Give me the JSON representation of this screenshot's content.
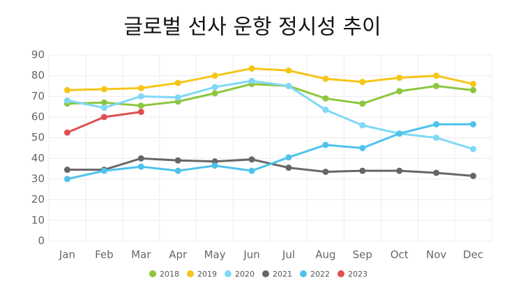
{
  "chart_data": {
    "type": "line",
    "title": "글로벌 선사 운항 정시성 추이",
    "categories": [
      "Jan",
      "Feb",
      "Mar",
      "Apr",
      "May",
      "Jun",
      "Jul",
      "Aug",
      "Sep",
      "Oct",
      "Nov",
      "Dec"
    ],
    "series": [
      {
        "name": "2018",
        "color": "#8dc63f",
        "values": [
          66.5,
          67,
          65.5,
          67.5,
          71.5,
          76,
          75,
          69,
          66.5,
          72.5,
          75,
          73
        ]
      },
      {
        "name": "2019",
        "color": "#f5c518",
        "values": [
          73,
          73.5,
          74,
          76.5,
          80,
          83.5,
          82.5,
          78.5,
          77,
          79,
          80,
          76
        ]
      },
      {
        "name": "2020",
        "color": "#80d8f7",
        "values": [
          68,
          64.5,
          70,
          69.5,
          74.5,
          77.5,
          75,
          63.5,
          56,
          52,
          50,
          44.5
        ]
      },
      {
        "name": "2021",
        "color": "#666666",
        "values": [
          34.5,
          34.5,
          40,
          39,
          38.5,
          39.5,
          35.5,
          33.5,
          34,
          34,
          33,
          31.5
        ]
      },
      {
        "name": "2022",
        "color": "#4dc3ec",
        "values": [
          30,
          34,
          36,
          34,
          36.5,
          34,
          40.5,
          46.5,
          45,
          52,
          56.5,
          56.5
        ]
      },
      {
        "name": "2023",
        "color": "#e05050",
        "values": [
          52.5,
          60,
          62.5,
          null,
          null,
          null,
          null,
          null,
          null,
          null,
          null,
          null
        ]
      }
    ],
    "ylim": [
      0,
      90
    ],
    "yticks": [
      0,
      10,
      20,
      30,
      40,
      50,
      60,
      70,
      80,
      90
    ],
    "grid": true,
    "legend": "bottom"
  }
}
